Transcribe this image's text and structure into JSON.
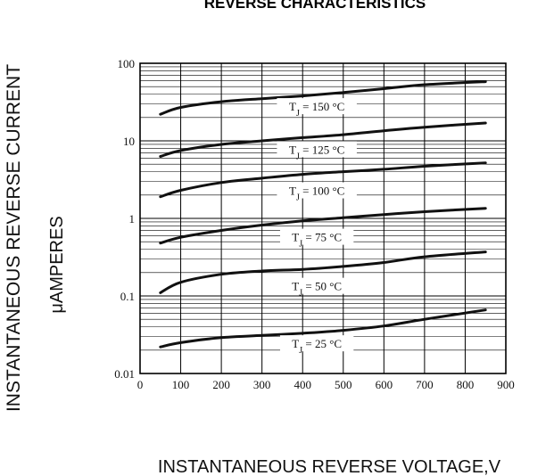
{
  "chart_data": {
    "type": "line",
    "title": "REVERSE CHARACTERISTICS",
    "ylabel_line1": "INSTANTANEOUS REVERSE CURRENT",
    "ylabel_line2": "μAMPERES",
    "xlabel": "INSTANTANEOUS REVERSE VOLTAGE,V",
    "xlim": [
      0,
      900
    ],
    "ylim": [
      0.01,
      100
    ],
    "yscale": "log",
    "grid": true,
    "x_ticks": [
      "0",
      "100",
      "200",
      "300",
      "400",
      "500",
      "600",
      "700",
      "800",
      "900"
    ],
    "y_ticks": [
      "100",
      "10",
      "1",
      "0.1",
      "0.01"
    ],
    "series": [
      {
        "name": "TJ = 150 °C",
        "x": [
          50,
          100,
          200,
          300,
          400,
          500,
          600,
          700,
          850
        ],
        "y": [
          22,
          27,
          32,
          35,
          38,
          42,
          47,
          53,
          58
        ]
      },
      {
        "name": "TJ = 125 °C",
        "x": [
          50,
          100,
          200,
          300,
          400,
          500,
          600,
          700,
          850
        ],
        "y": [
          6.3,
          7.5,
          9.0,
          10.0,
          11.0,
          12.0,
          13.5,
          15.0,
          17.0
        ]
      },
      {
        "name": "TJ = 100 °C",
        "x": [
          50,
          100,
          200,
          300,
          400,
          500,
          600,
          700,
          850
        ],
        "y": [
          1.9,
          2.3,
          2.9,
          3.3,
          3.7,
          4.0,
          4.3,
          4.7,
          5.2
        ]
      },
      {
        "name": "TJ = 75 °C",
        "x": [
          50,
          100,
          200,
          300,
          400,
          500,
          600,
          700,
          850
        ],
        "y": [
          0.48,
          0.57,
          0.7,
          0.82,
          0.93,
          1.02,
          1.12,
          1.22,
          1.35
        ]
      },
      {
        "name": "TJ = 50 °C",
        "x": [
          50,
          100,
          200,
          300,
          400,
          500,
          600,
          700,
          850
        ],
        "y": [
          0.11,
          0.15,
          0.19,
          0.21,
          0.22,
          0.24,
          0.27,
          0.32,
          0.37
        ]
      },
      {
        "name": "TJ = 25 °C",
        "x": [
          50,
          100,
          200,
          300,
          400,
          500,
          600,
          700,
          850
        ],
        "y": [
          0.022,
          0.025,
          0.029,
          0.031,
          0.033,
          0.036,
          0.041,
          0.05,
          0.066
        ]
      }
    ],
    "annotations": [
      {
        "prefix": "T",
        "sub": "J",
        "suffix": " = 150 °C",
        "x": 435,
        "y": 28
      },
      {
        "prefix": "T",
        "sub": "J",
        "suffix": " = 125 °C",
        "x": 435,
        "y": 7.8
      },
      {
        "prefix": "T",
        "sub": "J",
        "suffix": " = 100 °C",
        "x": 435,
        "y": 2.3
      },
      {
        "prefix": "T",
        "sub": "J",
        "suffix": " = 75 °C",
        "x": 435,
        "y": 0.58
      },
      {
        "prefix": "T",
        "sub": "J",
        "suffix": " = 50 °C",
        "x": 435,
        "y": 0.135
      },
      {
        "prefix": "T",
        "sub": "J",
        "suffix": " = 25 °C",
        "x": 435,
        "y": 0.0245
      }
    ]
  }
}
